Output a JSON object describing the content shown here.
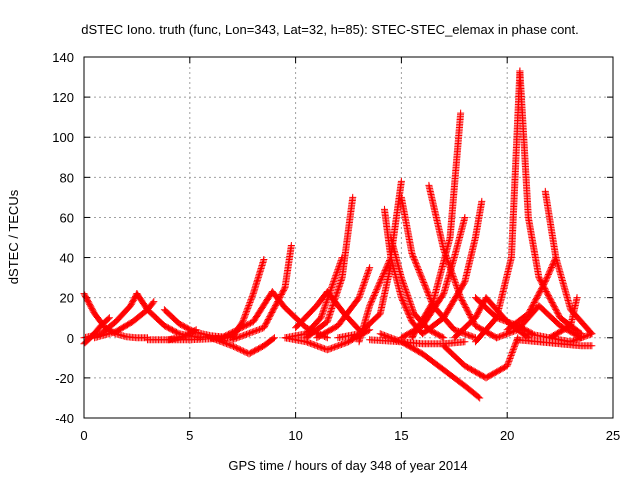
{
  "chart_data": {
    "type": "scatter",
    "title": "dSTEC Iono. truth (func, Lon=343, Lat=32, h=85): STEC-STEC_elemax in phase cont.",
    "xlabel": "GPS time / hours of day 348 of year 2014",
    "ylabel": "dSTEC  / TECUs",
    "xlim": [
      0,
      25
    ],
    "ylim": [
      -40,
      140
    ],
    "xticks": [
      0,
      5,
      10,
      15,
      20,
      25
    ],
    "yticks": [
      -40,
      -20,
      0,
      20,
      40,
      60,
      80,
      100,
      120,
      140
    ],
    "grid": true,
    "marker": "+",
    "color": "#ff0000",
    "series": [
      {
        "x": [
          0.0,
          0.5,
          1.0,
          1.5,
          2.0,
          2.5,
          3.0
        ],
        "y": [
          22,
          12,
          5,
          2,
          0.5,
          0,
          0
        ]
      },
      {
        "x": [
          0.0,
          0.4,
          0.8,
          1.2
        ],
        "y": [
          -3,
          1,
          6,
          10
        ]
      },
      {
        "x": [
          0.0,
          0.8,
          1.5,
          2.2,
          2.5
        ],
        "y": [
          0,
          2,
          8,
          16,
          22
        ]
      },
      {
        "x": [
          2.5,
          3.0,
          3.8,
          4.5,
          5.5
        ],
        "y": [
          22,
          14,
          6,
          2,
          0
        ]
      },
      {
        "x": [
          0.5,
          1.5,
          2.3,
          3.0,
          3.3
        ],
        "y": [
          0,
          3,
          8,
          14,
          18
        ]
      },
      {
        "x": [
          3.8,
          4.5,
          5.2,
          6.0,
          7.0
        ],
        "y": [
          14,
          7,
          3,
          1,
          0
        ]
      },
      {
        "x": [
          4.0,
          4.8,
          5.3
        ],
        "y": [
          -1,
          1,
          4
        ]
      },
      {
        "x": [
          3.0,
          5.0,
          7.0,
          7.5,
          8.0,
          8.5
        ],
        "y": [
          -1,
          -1,
          0,
          8,
          22,
          39
        ]
      },
      {
        "x": [
          6.0,
          7.0,
          7.8,
          8.5,
          9.0
        ],
        "y": [
          0,
          -4,
          -8,
          -4,
          0
        ]
      },
      {
        "x": [
          6.5,
          8.0,
          8.9,
          9.5,
          10.5,
          11.5
        ],
        "y": [
          0,
          8,
          23,
          15,
          5,
          0
        ]
      },
      {
        "x": [
          7.0,
          8.5,
          9.5,
          9.8
        ],
        "y": [
          -1,
          5,
          25,
          46
        ]
      },
      {
        "x": [
          9.5,
          10.5,
          11.2,
          11.8,
          12.2
        ],
        "y": [
          0,
          2,
          10,
          28,
          40
        ]
      },
      {
        "x": [
          9.5,
          10.5,
          11.5,
          12.5,
          13.5
        ],
        "y": [
          0,
          -2,
          -6,
          -2,
          4
        ]
      },
      {
        "x": [
          10.0,
          11.0,
          11.5,
          12.3,
          13.0
        ],
        "y": [
          5,
          16,
          23,
          12,
          4
        ]
      },
      {
        "x": [
          10.5,
          11.5,
          12.2,
          12.7
        ],
        "y": [
          0,
          8,
          30,
          70
        ]
      },
      {
        "x": [
          11.0,
          12.0,
          13.0,
          13.5
        ],
        "y": [
          0,
          6,
          20,
          35
        ]
      },
      {
        "x": [
          12.0,
          13.0,
          14.0,
          14.5
        ],
        "y": [
          0,
          2,
          12,
          36
        ]
      },
      {
        "x": [
          13.0,
          13.5,
          14.5,
          15.0
        ],
        "y": [
          -2,
          16,
          40,
          78
        ]
      },
      {
        "x": [
          14.2,
          14.5,
          15.0,
          15.5,
          16.0
        ],
        "y": [
          64,
          40,
          20,
          8,
          2
        ]
      },
      {
        "x": [
          14.5,
          15.0,
          15.6,
          16.3,
          17.0
        ],
        "y": [
          50,
          30,
          12,
          4,
          0
        ]
      },
      {
        "x": [
          15.0,
          15.5,
          16.5,
          17.5,
          18.5
        ],
        "y": [
          70,
          42,
          16,
          4,
          0
        ]
      },
      {
        "x": [
          13.5,
          15.0,
          16.0,
          17.0,
          18.0
        ],
        "y": [
          -1,
          -2,
          -3,
          -3,
          -2
        ]
      },
      {
        "x": [
          14.0,
          15.0,
          16.0,
          17.0,
          18.0,
          18.7
        ],
        "y": [
          2,
          -2,
          -8,
          -16,
          -24,
          -30
        ]
      },
      {
        "x": [
          15.0,
          16.0,
          17.0,
          17.5,
          18.0
        ],
        "y": [
          0,
          6,
          22,
          40,
          60
        ]
      },
      {
        "x": [
          15.5,
          16.5,
          17.3,
          17.8
        ],
        "y": [
          0,
          18,
          50,
          112
        ]
      },
      {
        "x": [
          16.3,
          17.0,
          17.8,
          18.5,
          19.5
        ],
        "y": [
          76,
          44,
          20,
          6,
          0
        ]
      },
      {
        "x": [
          16.0,
          17.0,
          18.0,
          18.5,
          18.8
        ],
        "y": [
          2,
          10,
          28,
          50,
          68
        ]
      },
      {
        "x": [
          17.5,
          18.5,
          19.0,
          20.0,
          21.0
        ],
        "y": [
          0,
          10,
          20,
          8,
          0
        ]
      },
      {
        "x": [
          18.5,
          19.5,
          20.5,
          21.2
        ],
        "y": [
          20,
          10,
          6,
          2
        ]
      },
      {
        "x": [
          17.0,
          18.0,
          19.0,
          20.0,
          20.5
        ],
        "y": [
          -4,
          -14,
          -20,
          -14,
          0
        ]
      },
      {
        "x": [
          18.5,
          19.5,
          20.2,
          20.6
        ],
        "y": [
          -2,
          10,
          40,
          133
        ]
      },
      {
        "x": [
          20.6,
          21.0,
          21.5,
          22.5,
          23.5
        ],
        "y": [
          133,
          60,
          30,
          10,
          2
        ]
      },
      {
        "x": [
          19.5,
          20.5,
          21.5,
          22.5,
          23.5
        ],
        "y": [
          0,
          4,
          16,
          6,
          0
        ]
      },
      {
        "x": [
          21.8,
          22.3,
          23.0,
          24.0
        ],
        "y": [
          73,
          40,
          14,
          2
        ]
      },
      {
        "x": [
          20.0,
          21.0,
          21.8,
          22.3
        ],
        "y": [
          4,
          12,
          28,
          40
        ]
      },
      {
        "x": [
          21.0,
          22.0,
          23.0,
          23.3
        ],
        "y": [
          2,
          0,
          6,
          20
        ]
      },
      {
        "x": [
          20.5,
          21.5,
          22.5,
          23.5,
          24.0
        ],
        "y": [
          -1,
          -2,
          -3,
          -4,
          -4
        ]
      },
      {
        "x": [
          22.0,
          23.0,
          24.0
        ],
        "y": [
          0,
          -2,
          2
        ]
      }
    ]
  }
}
